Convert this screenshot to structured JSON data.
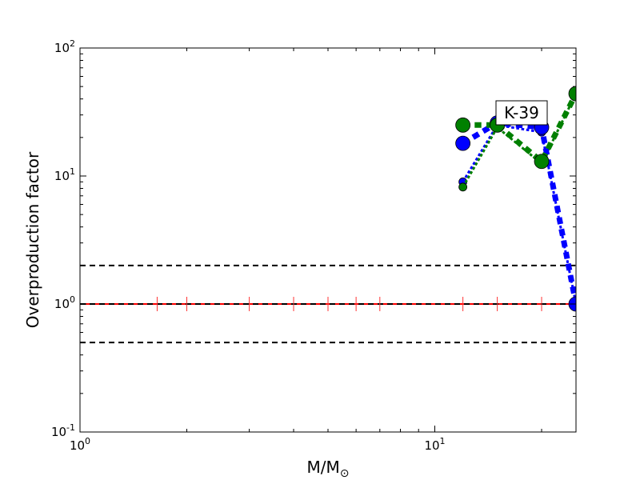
{
  "chart_data": {
    "type": "scatter",
    "title": "",
    "xlabel": "M/M",
    "xlabel_sub": "⊙",
    "ylabel": "Overproduction factor",
    "xscale": "log",
    "yscale": "log",
    "xlim": [
      1,
      25
    ],
    "ylim": [
      0.1,
      100
    ],
    "x_ticks": [
      {
        "base": "10",
        "exp": "0"
      },
      {
        "base": "10",
        "exp": "1"
      }
    ],
    "y_ticks": [
      {
        "base": "10",
        "exp": "-1"
      },
      {
        "base": "10",
        "exp": "0"
      },
      {
        "base": "10",
        "exp": "1"
      },
      {
        "base": "10",
        "exp": "2"
      }
    ],
    "annotation": "K-39",
    "reference_lines": [
      {
        "y": 2.0,
        "color": "#000000",
        "style": "dashed"
      },
      {
        "y": 1.0,
        "color": "#ff0000",
        "style": "solid"
      },
      {
        "y": 1.0,
        "color": "#000000",
        "style": "dashed"
      },
      {
        "y": 0.5,
        "color": "#000000",
        "style": "dashed"
      }
    ],
    "red_marker_x": [
      1.65,
      2,
      3,
      4,
      5,
      6,
      7,
      12,
      15,
      20
    ],
    "series": [
      {
        "color": "#0000ff",
        "line_width": 3,
        "marker_size": 5,
        "points": [
          {
            "x": 12,
            "y": 9.0
          },
          {
            "x": 15,
            "y": 25.0
          },
          {
            "x": 20,
            "y": 22.0
          },
          {
            "x": 25,
            "y": 1.0
          }
        ]
      },
      {
        "color": "#008000",
        "line_width": 3,
        "marker_size": 5,
        "points": [
          {
            "x": 12,
            "y": 8.2
          },
          {
            "x": 15,
            "y": 24.0
          },
          {
            "x": 20,
            "y": 12.5
          },
          {
            "x": 25,
            "y": 44.0
          }
        ]
      },
      {
        "color": "#0000ff",
        "line_width": 7,
        "marker_size": 9,
        "points": [
          {
            "x": 12,
            "y": 18.0
          },
          {
            "x": 15,
            "y": 26.0
          },
          {
            "x": 20,
            "y": 24.0
          },
          {
            "x": 25,
            "y": 1.0
          }
        ]
      },
      {
        "color": "#008000",
        "line_width": 7,
        "marker_size": 9,
        "points": [
          {
            "x": 12,
            "y": 25.0
          },
          {
            "x": 15,
            "y": 25.0
          },
          {
            "x": 20,
            "y": 13.0
          },
          {
            "x": 25,
            "y": 44.0
          }
        ]
      }
    ]
  }
}
